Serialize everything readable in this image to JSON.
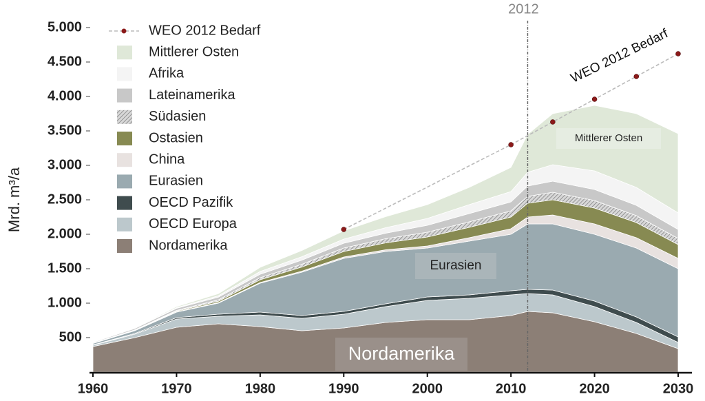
{
  "chart_data": {
    "type": "stacked_area",
    "y_axis_label": "Mrd. m³/a",
    "x": [
      1960,
      1965,
      1970,
      1975,
      1980,
      1985,
      1990,
      1995,
      2000,
      2005,
      2010,
      2012,
      2015,
      2020,
      2025,
      2030
    ],
    "series": [
      {
        "name": "Nordamerika",
        "color": "#8c7f76",
        "values": [
          370,
          500,
          650,
          700,
          660,
          600,
          640,
          720,
          760,
          760,
          820,
          880,
          860,
          730,
          560,
          340
        ]
      },
      {
        "name": "OECD Europa",
        "color": "#bcc8cc",
        "values": [
          20,
          50,
          120,
          110,
          170,
          180,
          200,
          230,
          280,
          310,
          300,
          260,
          260,
          220,
          160,
          90
        ]
      },
      {
        "name": "OECD Pazifik",
        "color": "#3f4c4e",
        "values": [
          5,
          10,
          20,
          30,
          40,
          40,
          40,
          40,
          50,
          50,
          60,
          60,
          70,
          80,
          80,
          80
        ]
      },
      {
        "name": "Eurasien",
        "color": "#9aaab0",
        "values": [
          20,
          40,
          80,
          160,
          420,
          630,
          770,
          760,
          710,
          780,
          820,
          950,
          960,
          970,
          1000,
          990
        ]
      },
      {
        "name": "China",
        "color": "#e8e2e0",
        "values": [
          2,
          3,
          5,
          8,
          10,
          15,
          20,
          25,
          30,
          50,
          80,
          100,
          130,
          150,
          150,
          150
        ]
      },
      {
        "name": "Ostasien",
        "color": "#878a52",
        "values": [
          3,
          5,
          10,
          20,
          40,
          60,
          80,
          100,
          130,
          150,
          170,
          200,
          220,
          230,
          220,
          200
        ]
      },
      {
        "name": "Südasien",
        "color": "#b4b4b4",
        "hatch": true,
        "values": [
          2,
          5,
          10,
          20,
          30,
          40,
          50,
          60,
          70,
          80,
          90,
          100,
          110,
          110,
          100,
          90
        ]
      },
      {
        "name": "Lateinamerika",
        "color": "#c8c8c8",
        "values": [
          10,
          20,
          30,
          40,
          50,
          60,
          70,
          80,
          100,
          120,
          130,
          150,
          160,
          160,
          150,
          130
        ]
      },
      {
        "name": "Afrika",
        "color": "#f4f4f4",
        "values": [
          2,
          5,
          10,
          20,
          40,
          50,
          60,
          80,
          100,
          130,
          150,
          200,
          240,
          270,
          260,
          240
        ]
      },
      {
        "name": "Mittlerer Osten",
        "color": "#dfe8d8",
        "values": [
          2,
          5,
          15,
          30,
          60,
          90,
          120,
          160,
          200,
          250,
          350,
          550,
          740,
          950,
          1070,
          1150
        ]
      }
    ],
    "demand": {
      "name": "WEO 2012 Bedarf",
      "color": "#8b1a1a",
      "x": [
        1990,
        2010,
        2015,
        2020,
        2025,
        2030
      ],
      "values": [
        2070,
        3300,
        3630,
        3960,
        4290,
        4620
      ]
    },
    "marker_line": {
      "x": 2012,
      "label": "2012"
    },
    "annotations": [
      "Nordamerika",
      "Eurasien",
      "Mittlerer Osten",
      "WEO 2012 Bedarf"
    ],
    "xlim": [
      1960,
      2030
    ],
    "xticks": [
      1960,
      1970,
      1980,
      1990,
      2000,
      2010,
      2020,
      2030
    ],
    "ylim": [
      0,
      5000
    ],
    "yticks": [
      500,
      {
        "value": 1000,
        "label": "1.000"
      },
      {
        "value": 1500,
        "label": "1.500"
      },
      {
        "value": 2000,
        "label": "2.000"
      },
      {
        "value": 2500,
        "label": "2.500"
      },
      {
        "value": 3000,
        "label": "3.000"
      },
      {
        "value": 3500,
        "label": "3.500"
      },
      {
        "value": 4000,
        "label": "4.000"
      },
      {
        "value": 4500,
        "label": "4.500"
      },
      {
        "value": 5000,
        "label": "5.000"
      }
    ],
    "legend": "upper left"
  }
}
